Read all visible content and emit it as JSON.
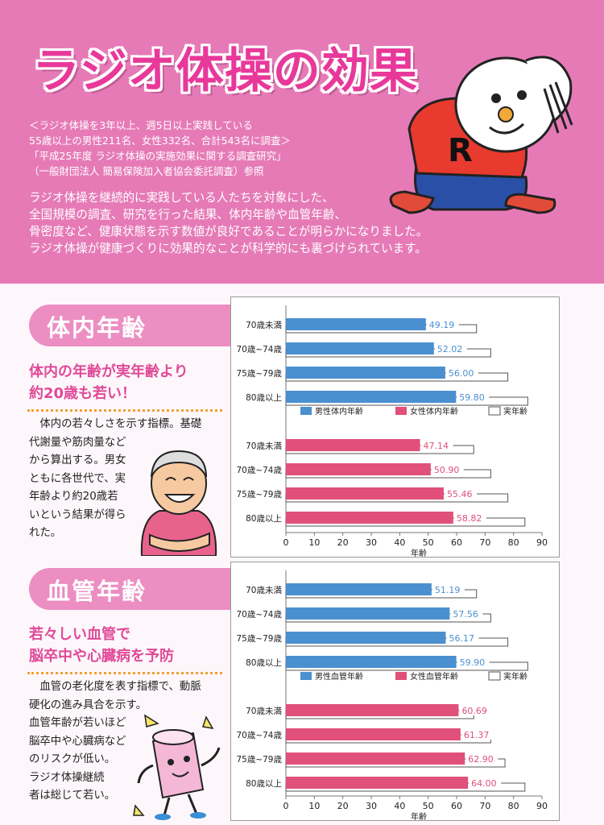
{
  "header": {
    "title": "ラジオ体操の効果",
    "survey_lines": [
      "＜ラジオ体操を3年以上、週5日以上実践している",
      "55歳以上の男性211名、女性332名、合計543名に調査＞",
      "「平成25年度 ラジオ体操の実施効果に関する調査研究」",
      "（一般財団法人 簡易保険加入者協会委託調査）参照"
    ],
    "intro_lines": [
      "ラジオ体操を継続的に実践している人たちを対象にした、",
      "全国規模の調査、研究を行った結果、体内年齢や血管年齢、",
      "骨密度など、健康状態を示す数値が良好であることが明らかになりました。",
      "ラジオ体操が健康づくりに効果的なことが科学的にも裏づけられています。"
    ],
    "mascot_shirt_letter": "R"
  },
  "sections": [
    {
      "tab": "体内年齢",
      "headline": [
        "体内の年齢が実年齢より",
        "約20歳も若い！"
      ],
      "body": [
        "　体内の若々しさを示す指標。基礎",
        "代謝量や筋肉量など",
        "から算出する。男女",
        "ともに各世代で、実",
        "年齢より約20歳若",
        "いという結果が得ら",
        "れた。"
      ]
    },
    {
      "tab": "血管年齢",
      "headline": [
        "若々しい血管で",
        "脳卒中や心臓病を予防"
      ],
      "body": [
        "　血管の老化度を表す指標で、動脈",
        "硬化の進み具合を示す。",
        "血管年齢が若いほど",
        "脳卒中や心臓病など",
        "のリスクが低い。",
        "ラジオ体操継続",
        "者は総じて若い。"
      ]
    }
  ],
  "colors": {
    "male": "#4a90d0",
    "female": "#e0507a",
    "actual": "#ffffff",
    "accent": "#e8389a"
  },
  "chart_data": [
    {
      "type": "bar",
      "orientation": "horizontal",
      "xlabel": "年齢",
      "xlim": [
        0,
        90
      ],
      "xticks": [
        0,
        10,
        20,
        30,
        40,
        50,
        60,
        70,
        80,
        90
      ],
      "categories": [
        "70歳未満",
        "70歳~74歳",
        "75歳~79歳",
        "80歳以上"
      ],
      "legend": [
        "男性体内年齢",
        "女性体内年齢",
        "実年齢"
      ],
      "series": [
        {
          "name": "男性体内年齢",
          "values": [
            49.19,
            52.02,
            56.0,
            59.8
          ],
          "labels": [
            "49.19",
            "52.02",
            "56.00",
            "59.80"
          ],
          "actual": [
            67,
            72,
            78,
            85
          ]
        },
        {
          "name": "女性体内年齢",
          "values": [
            47.14,
            50.9,
            55.46,
            58.82
          ],
          "labels": [
            "47.14",
            "50.90",
            "55.46",
            "58.82"
          ],
          "actual": [
            66,
            72,
            78,
            84
          ]
        }
      ]
    },
    {
      "type": "bar",
      "orientation": "horizontal",
      "xlabel": "年齢",
      "xlim": [
        0,
        90
      ],
      "xticks": [
        0,
        10,
        20,
        30,
        40,
        50,
        60,
        70,
        80,
        90
      ],
      "categories": [
        "70歳未満",
        "70歳~74歳",
        "75歳~79歳",
        "80歳以上"
      ],
      "legend": [
        "男性血管年齢",
        "女性血管年齢",
        "実年齢"
      ],
      "series": [
        {
          "name": "男性血管年齢",
          "values": [
            51.19,
            57.56,
            56.17,
            59.9
          ],
          "labels": [
            "51.19",
            "57.56",
            "56.17",
            "59.90"
          ],
          "actual": [
            67,
            72,
            78,
            85
          ]
        },
        {
          "name": "女性血管年齢",
          "values": [
            60.69,
            61.37,
            62.9,
            64.0
          ],
          "labels": [
            "60.69",
            "61.37",
            "62.90",
            "64.00"
          ],
          "actual": [
            66,
            72,
            77,
            84
          ]
        }
      ]
    }
  ]
}
